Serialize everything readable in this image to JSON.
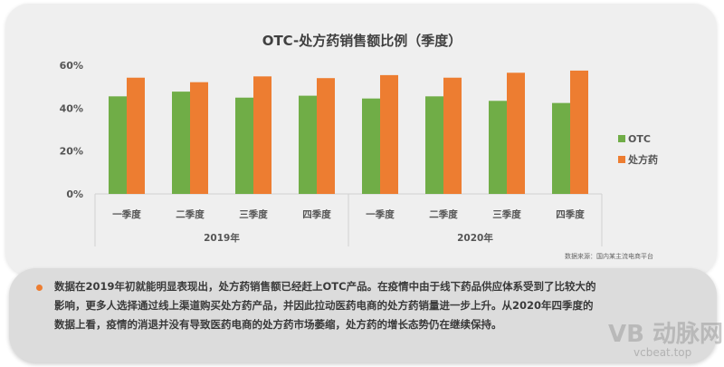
{
  "chart_data": {
    "type": "bar",
    "title": "OTC-处方药销售额比例（季度）",
    "groups": [
      {
        "label": "2019年",
        "categories": [
          "一季度",
          "二季度",
          "三季度",
          "四季度"
        ]
      },
      {
        "label": "2020年",
        "categories": [
          "一季度",
          "二季度",
          "三季度",
          "四季度"
        ]
      }
    ],
    "series": [
      {
        "name": "OTC",
        "color": "#70ad47",
        "values": [
          45.5,
          47.7,
          44.9,
          45.8,
          44.5,
          45.5,
          43.4,
          42.4
        ]
      },
      {
        "name": "处方药",
        "color": "#ed7d31",
        "values": [
          54.2,
          52.1,
          54.8,
          54.0,
          55.4,
          54.2,
          56.5,
          57.5
        ]
      }
    ],
    "yticks": [
      "0%",
      "20%",
      "40%",
      "60%"
    ],
    "ytick_values": [
      0,
      20,
      40,
      60
    ],
    "ylim": [
      0,
      60
    ],
    "unit": "%",
    "grid": false,
    "legend": "right"
  },
  "source": "数据来源：国内某主流电商平台",
  "note": "数据在2019年初就能明显表现出，处方药销售额已经赶上OTC产品。在疫情中由于线下药品供应体系受到了比较大的影响，更多人选择通过线上渠道购买处方药产品，并因此拉动医药电商的处方药销量进一步上升。从2020年四季度的数据上看，疫情的消退并没有导致医药电商的处方药市场萎缩，处方药的增长态势仍在继续保持。",
  "watermark": {
    "logo": "动脉网",
    "site": "vcbeat.top"
  }
}
